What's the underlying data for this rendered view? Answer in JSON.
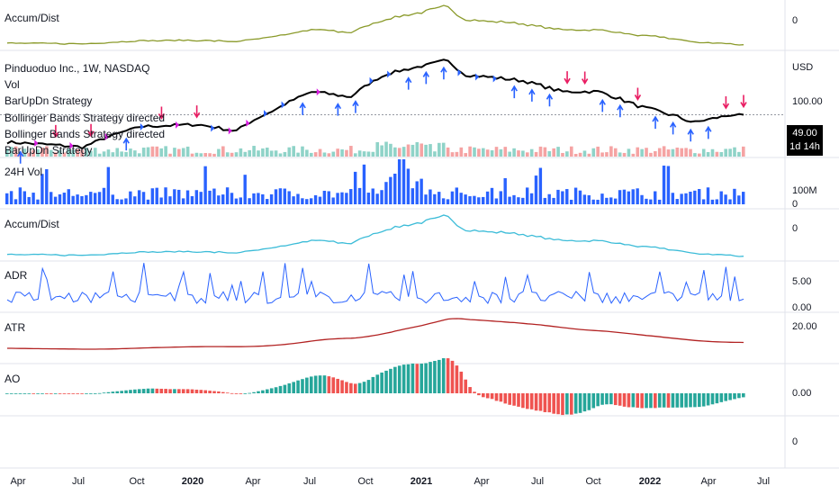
{
  "colors": {
    "up": "#26a69a",
    "down": "#ef5350",
    "vol_up": "#8fd3c8",
    "vol_down": "#f5a3a3",
    "blue": "#2962ff",
    "accum1": "#8a9a2a",
    "accum2": "#3cbcd8",
    "adr": "#2962ff",
    "atr": "#b22222",
    "signal_up": "#2962ff",
    "signal_down": "#e91e63",
    "signal_magenta": "#d81be0"
  },
  "panels": {
    "accum_top": {
      "title": "Accum/Dist",
      "tick": "0"
    },
    "main": {
      "title": "Pinduoduo Inc., 1W, NASDAQ",
      "legend": [
        "Vol",
        "BarUpDn Strategy",
        "Bollinger Bands Strategy directed",
        "Bollinger Bands Strategy directed",
        "BarUpDn Strategy"
      ],
      "currency": "USD",
      "tick": "100.00",
      "price_label": "49.00",
      "countdown": "1d 14h"
    },
    "vol24h": {
      "title": "24H Vol",
      "tick_top": "100M",
      "tick_bottom": "0"
    },
    "accum_mid": {
      "title": "Accum/Dist",
      "tick": "0"
    },
    "adr": {
      "title": "ADR",
      "tick_top": "5.00",
      "tick_bottom": "0.00"
    },
    "atr": {
      "title": "ATR",
      "tick": "20.00"
    },
    "ao": {
      "title": "AO",
      "tick": "0.00"
    },
    "empty": {
      "tick": "0"
    }
  },
  "x_axis": {
    "labels": [
      {
        "text": "Apr",
        "bold": false
      },
      {
        "text": "Jul",
        "bold": false
      },
      {
        "text": "Oct",
        "bold": false
      },
      {
        "text": "2020",
        "bold": true
      },
      {
        "text": "Apr",
        "bold": false
      },
      {
        "text": "Jul",
        "bold": false
      },
      {
        "text": "Oct",
        "bold": false
      },
      {
        "text": "2021",
        "bold": true
      },
      {
        "text": "Apr",
        "bold": false
      },
      {
        "text": "Jul",
        "bold": false
      },
      {
        "text": "Oct",
        "bold": false
      },
      {
        "text": "2022",
        "bold": true
      },
      {
        "text": "Apr",
        "bold": false
      },
      {
        "text": "Jul",
        "bold": false
      }
    ]
  },
  "chart_data": {
    "type": "line",
    "interval": "1W",
    "x_range": [
      "2019-03",
      "2022-07"
    ],
    "price_anchors": [
      {
        "date": "2019-03",
        "price": 24
      },
      {
        "date": "2019-07",
        "price": 21
      },
      {
        "date": "2019-10",
        "price": 36
      },
      {
        "date": "2020-01",
        "price": 38
      },
      {
        "date": "2020-03",
        "price": 32
      },
      {
        "date": "2020-05",
        "price": 55
      },
      {
        "date": "2020-07",
        "price": 90
      },
      {
        "date": "2020-09",
        "price": 78
      },
      {
        "date": "2020-11",
        "price": 145
      },
      {
        "date": "2021-01",
        "price": 180
      },
      {
        "date": "2021-02",
        "price": 205
      },
      {
        "date": "2021-03",
        "price": 140
      },
      {
        "date": "2021-06",
        "price": 120
      },
      {
        "date": "2021-08",
        "price": 90
      },
      {
        "date": "2021-10",
        "price": 90
      },
      {
        "date": "2021-12",
        "price": 62
      },
      {
        "date": "2022-03",
        "price": 40
      },
      {
        "date": "2022-05",
        "price": 49
      }
    ],
    "last_price": 49.0,
    "series": [
      {
        "indicator": "Accum/Dist",
        "note": "rises into early 2021, falls to lows by May 2022"
      },
      {
        "indicator": "ATR",
        "peak": 20,
        "peak_date": "2021-03",
        "last": 11
      },
      {
        "indicator": "ADR",
        "range": [
          0,
          6
        ]
      },
      {
        "indicator": "AO",
        "range": [
          -30,
          20
        ]
      }
    ]
  }
}
